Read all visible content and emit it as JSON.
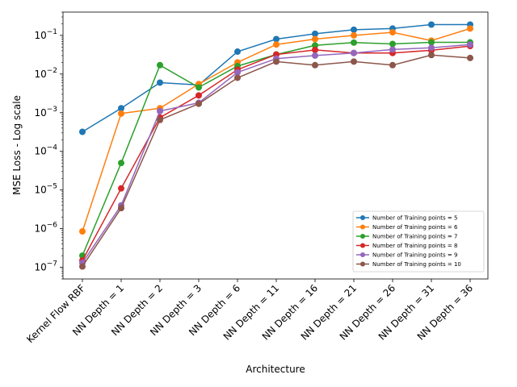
{
  "chart_data": {
    "type": "line",
    "xlabel": "Architecture",
    "ylabel": "MSE Loss - Log scale",
    "yscale": "log",
    "ylim": [
      5e-08,
      0.4
    ],
    "y_ticks": [
      {
        "value": 1e-07,
        "base": "10",
        "exp": "−7"
      },
      {
        "value": 1e-06,
        "base": "10",
        "exp": "−6"
      },
      {
        "value": 1e-05,
        "base": "10",
        "exp": "−5"
      },
      {
        "value": 0.0001,
        "base": "10",
        "exp": "−4"
      },
      {
        "value": 0.001,
        "base": "10",
        "exp": "−3"
      },
      {
        "value": 0.01,
        "base": "10",
        "exp": "−2"
      },
      {
        "value": 0.1,
        "base": "10",
        "exp": "−1"
      }
    ],
    "grid": false,
    "legend_position": "lower right",
    "categories": [
      "Kernel Flow RBF",
      "NN Depth = 1",
      "NN Depth = 2",
      "NN Depth = 3",
      "NN Depth = 6",
      "NN Depth = 11",
      "NN Depth = 16",
      "NN Depth = 21",
      "NN Depth = 26",
      "NN Depth = 31",
      "NN Depth = 36"
    ],
    "series": [
      {
        "name": "Number of Training points = 5",
        "color": "#1f77b4",
        "values": [
          0.00032,
          0.0013,
          0.006,
          0.0052,
          0.038,
          0.08,
          0.11,
          0.14,
          0.15,
          0.19,
          0.19
        ]
      },
      {
        "name": "Number of Training points = 6",
        "color": "#ff7f0e",
        "values": [
          8.5e-07,
          0.00095,
          0.0013,
          0.0055,
          0.02,
          0.058,
          0.08,
          0.1,
          0.12,
          0.073,
          0.15
        ]
      },
      {
        "name": "Number of Training points = 7",
        "color": "#2ca02c",
        "values": [
          2e-07,
          5e-05,
          0.017,
          0.0045,
          0.016,
          0.032,
          0.055,
          0.065,
          0.06,
          0.066,
          0.066
        ]
      },
      {
        "name": "Number of Training points = 8",
        "color": "#d62728",
        "values": [
          1.5e-07,
          1.1e-05,
          0.00075,
          0.0028,
          0.013,
          0.032,
          0.042,
          0.035,
          0.035,
          0.041,
          0.053
        ]
      },
      {
        "name": "Number of Training points = 9",
        "color": "#9467bd",
        "values": [
          1.3e-07,
          4e-06,
          0.0011,
          0.0018,
          0.011,
          0.025,
          0.03,
          0.035,
          0.043,
          0.048,
          0.058
        ]
      },
      {
        "name": "Number of Training points = 10",
        "color": "#8c564b",
        "values": [
          1.05e-07,
          3.4e-06,
          0.00065,
          0.0017,
          0.008,
          0.021,
          0.017,
          0.021,
          0.017,
          0.031,
          0.026
        ]
      }
    ]
  }
}
